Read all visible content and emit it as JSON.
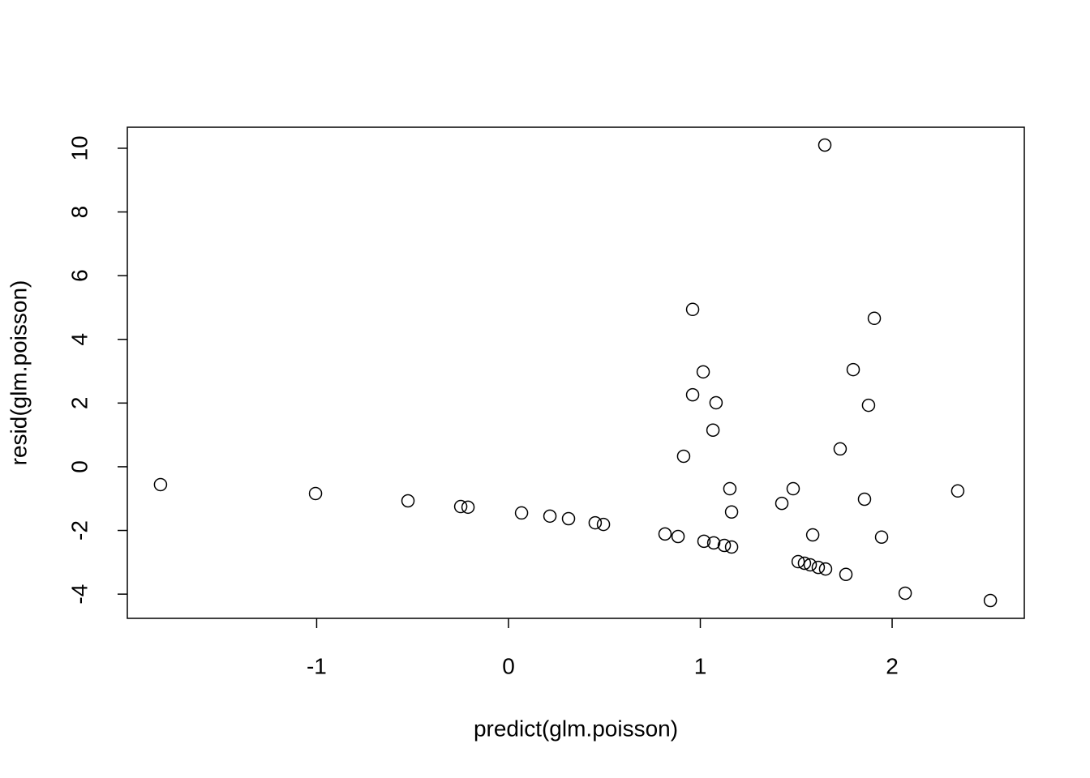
{
  "chart_data": {
    "type": "scatter",
    "x_label": "predict(glm.poisson)",
    "y_label": "resid(glm.poisson)",
    "marker": "open-circle",
    "color": "#000000",
    "xlim": [
      -1.987,
      2.689
    ],
    "ylim": [
      -4.76,
      10.66
    ],
    "xticks": [
      -1,
      0,
      1,
      2
    ],
    "yticks": [
      -4,
      -2,
      0,
      2,
      4,
      6,
      8,
      10
    ],
    "grid": false,
    "x": [
      -1.814,
      -1.006,
      -0.524,
      -0.249,
      -0.211,
      0.068,
      0.216,
      0.313,
      0.452,
      0.495,
      0.816,
      0.884,
      1.019,
      1.07,
      1.125,
      1.163,
      0.913,
      0.96,
      1.015,
      0.96,
      1.082,
      1.066,
      1.154,
      1.163,
      1.425,
      1.484,
      1.586,
      1.51,
      1.543,
      1.573,
      1.615,
      1.653,
      1.649,
      1.729,
      1.759,
      1.797,
      1.856,
      1.877,
      1.907,
      1.945,
      2.068,
      2.342,
      2.512
    ],
    "values": [
      -0.56,
      -0.84,
      -1.07,
      -1.25,
      -1.27,
      -1.45,
      -1.55,
      -1.63,
      -1.76,
      -1.81,
      -2.11,
      -2.19,
      -2.34,
      -2.39,
      -2.47,
      -2.52,
      0.33,
      4.94,
      2.98,
      2.26,
      2.01,
      1.15,
      -0.69,
      -1.42,
      -1.15,
      -0.69,
      -2.14,
      -2.98,
      -3.03,
      -3.08,
      -3.16,
      -3.21,
      10.1,
      0.56,
      -3.38,
      3.05,
      -1.02,
      1.93,
      4.66,
      -2.21,
      -3.97,
      -0.76,
      -4.2
    ]
  }
}
